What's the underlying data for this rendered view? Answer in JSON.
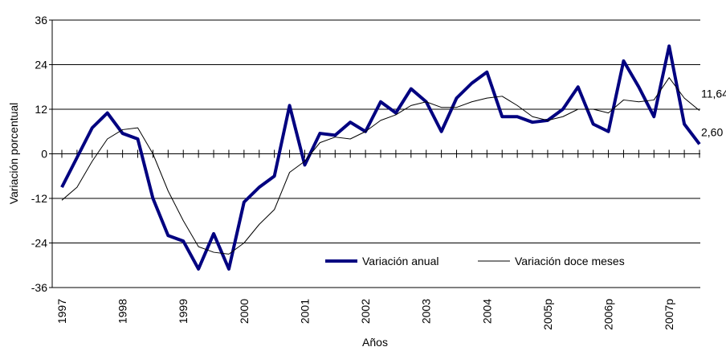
{
  "chart_data": {
    "type": "line",
    "ylabel": "Variación porcentual",
    "xlabel": "Años",
    "categories": [
      "1997",
      null,
      null,
      null,
      "1998",
      null,
      null,
      null,
      "1999",
      null,
      null,
      null,
      "2000",
      null,
      null,
      null,
      "2001",
      null,
      null,
      null,
      "2002",
      null,
      null,
      null,
      "2003",
      null,
      null,
      null,
      "2004",
      null,
      null,
      null,
      "2005p",
      null,
      null,
      null,
      "2006p",
      null,
      null,
      null,
      "2007p",
      null,
      null
    ],
    "series": [
      {
        "name": "Variación anual",
        "color": "#000080",
        "width": 4,
        "values": [
          -9,
          -1,
          7,
          11,
          5.5,
          4,
          -12,
          -22,
          -23.5,
          -31,
          -21.5,
          -31,
          -13,
          -9,
          -6,
          13,
          -3,
          5.5,
          5,
          8.5,
          6,
          14,
          11,
          17.5,
          14,
          6,
          15,
          19,
          22,
          10,
          10,
          8.5,
          9,
          12,
          18,
          8,
          6,
          25,
          18,
          10,
          29,
          8,
          2.6
        ],
        "value_labels": [
          null,
          null,
          null,
          null,
          null,
          null,
          null,
          null,
          null,
          null,
          null,
          null,
          null,
          null,
          null,
          null,
          null,
          null,
          null,
          null,
          null,
          null,
          null,
          null,
          null,
          null,
          null,
          null,
          null,
          null,
          null,
          null,
          null,
          null,
          null,
          null,
          null,
          null,
          null,
          null,
          null,
          null,
          "2,60"
        ]
      },
      {
        "name": "Variación doce meses",
        "color": "#000000",
        "width": 1,
        "values": [
          -12.5,
          -9,
          -2,
          4,
          6.5,
          7,
          0,
          -10,
          -18,
          -25,
          -26.5,
          -27,
          -24,
          -19,
          -15,
          -5,
          -2,
          3,
          4.5,
          4,
          6,
          9,
          10.5,
          13,
          14,
          12.5,
          12.5,
          14,
          15,
          15.5,
          13,
          10,
          9,
          10,
          12,
          12,
          11,
          14.5,
          14,
          14.5,
          20.5,
          15,
          11.64
        ],
        "value_labels": [
          null,
          null,
          null,
          null,
          null,
          null,
          null,
          null,
          null,
          null,
          null,
          null,
          null,
          null,
          null,
          null,
          null,
          null,
          null,
          null,
          null,
          null,
          null,
          null,
          null,
          null,
          null,
          null,
          null,
          null,
          null,
          null,
          null,
          null,
          null,
          null,
          null,
          null,
          null,
          null,
          null,
          null,
          "11,64"
        ]
      }
    ],
    "ylim": [
      -36,
      36
    ],
    "yticks": [
      -36,
      -24,
      -12,
      0,
      12,
      24,
      36
    ],
    "grid": true,
    "legend": "lower right"
  }
}
